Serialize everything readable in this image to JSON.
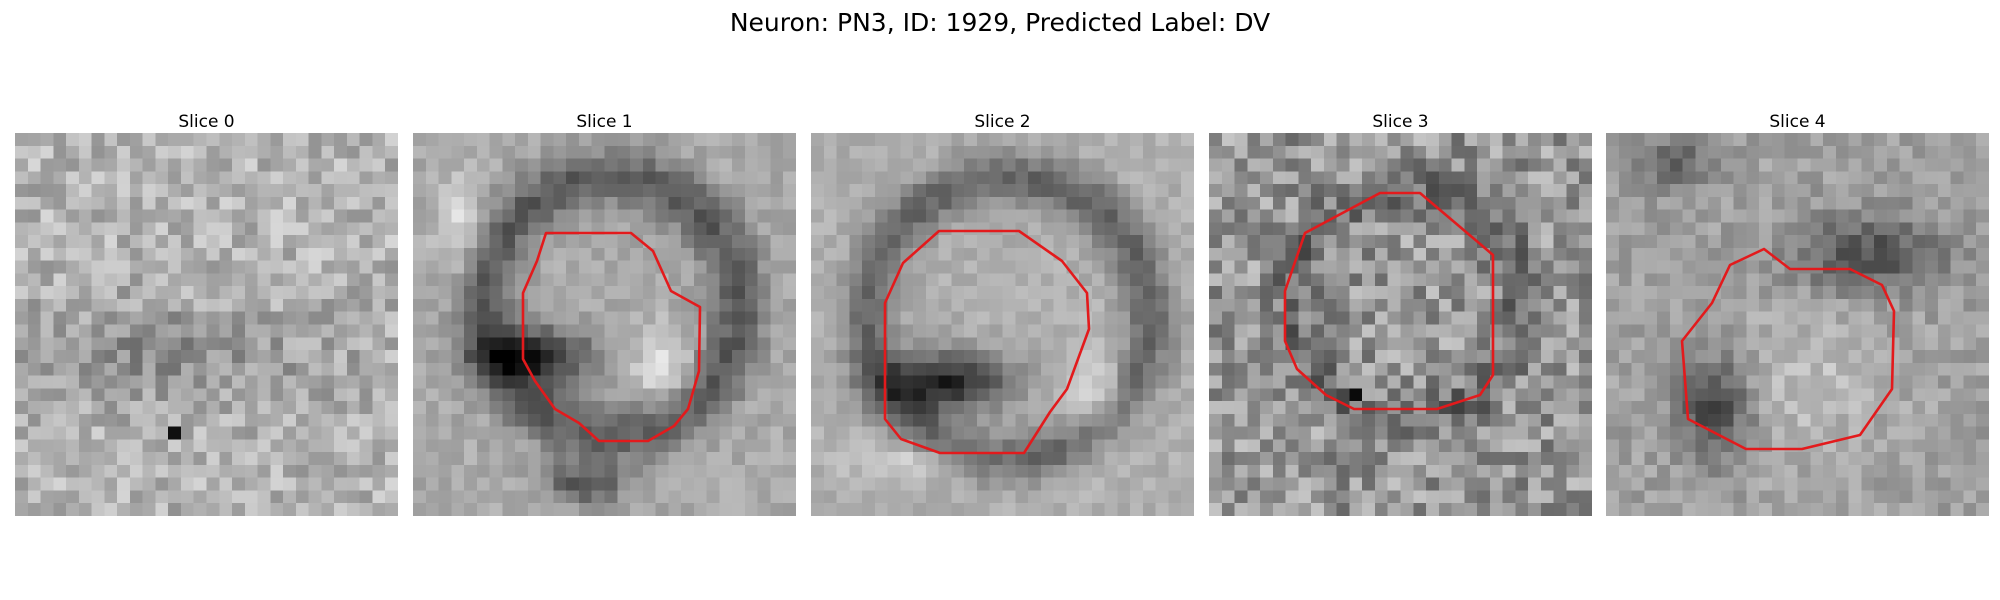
{
  "figure": {
    "title": "Neuron: PN3, ID: 1929, Predicted Label: DV"
  },
  "colors": {
    "contour": "#e31a1c",
    "colormap": "gray"
  },
  "slices": [
    {
      "title": "Slice 0",
      "has_contour": false
    },
    {
      "title": "Slice 1",
      "has_contour": true
    },
    {
      "title": "Slice 2",
      "has_contour": true
    },
    {
      "title": "Slice 3",
      "has_contour": true
    },
    {
      "title": "Slice 4",
      "has_contour": true
    }
  ]
}
